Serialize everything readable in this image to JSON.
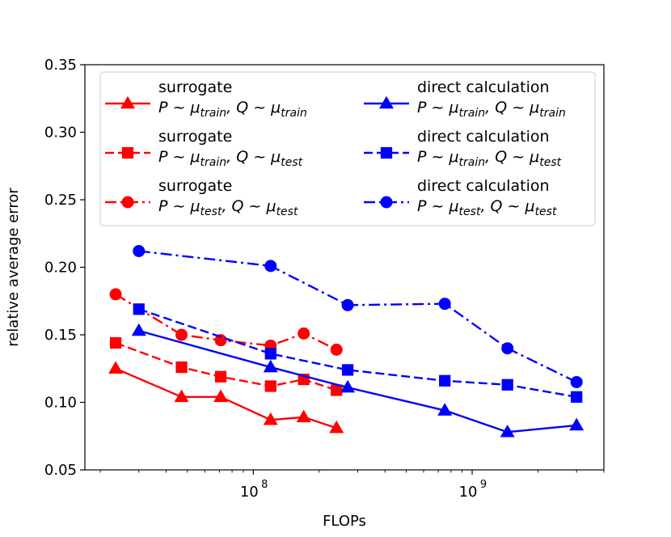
{
  "chart_data": {
    "type": "line",
    "title": "",
    "xlabel": "FLOPs",
    "ylabel": "relative average error",
    "xscale": "log",
    "xlim": [
      17000000,
      4000000000
    ],
    "ylim": [
      0.05,
      0.35
    ],
    "yticks": [
      0.05,
      0.1,
      0.15,
      0.2,
      0.25,
      0.3,
      0.35
    ],
    "ytick_labels": [
      "0.05",
      "0.10",
      "0.15",
      "0.20",
      "0.25",
      "0.30",
      "0.35"
    ],
    "xticks_major": [
      100000000,
      1000000000
    ],
    "xtick_labels": [
      {
        "base": "10",
        "exp": "8"
      },
      {
        "base": "10",
        "exp": "9"
      }
    ],
    "legend_position": "top",
    "series": [
      {
        "name": "surrogate",
        "subtitle": "P ~ μtrain, Q ~ μtrain",
        "legend_line1": "surrogate",
        "legend_line2": {
          "p_sub": "train",
          "q_sub": "train"
        },
        "color": "#ff0000",
        "marker": "triangle",
        "linestyle": "solid",
        "x": [
          23500000,
          47000000,
          71000000,
          120000000,
          170000000,
          240000000
        ],
        "y": [
          0.125,
          0.104,
          0.104,
          0.087,
          0.089,
          0.081
        ]
      },
      {
        "name": "surrogate",
        "subtitle": "P ~ μtrain, Q ~ μtest",
        "legend_line1": "surrogate",
        "legend_line2": {
          "p_sub": "train",
          "q_sub": "test"
        },
        "color": "#ff0000",
        "marker": "square",
        "linestyle": "dashed",
        "x": [
          23500000,
          47000000,
          71000000,
          120000000,
          170000000,
          240000000
        ],
        "y": [
          0.144,
          0.126,
          0.119,
          0.112,
          0.117,
          0.109
        ]
      },
      {
        "name": "surrogate",
        "subtitle": "P ~ μtest, Q ~ μtest",
        "legend_line1": "surrogate",
        "legend_line2": {
          "p_sub": "test",
          "q_sub": "test"
        },
        "color": "#ff0000",
        "marker": "circle",
        "linestyle": "dashdot",
        "x": [
          23500000,
          47000000,
          71000000,
          120000000,
          170000000,
          240000000
        ],
        "y": [
          0.18,
          0.15,
          0.146,
          0.142,
          0.151,
          0.139
        ]
      },
      {
        "name": "direct calculation",
        "subtitle": "P ~ μtrain, Q ~ μtrain",
        "legend_line1": "direct calculation",
        "legend_line2": {
          "p_sub": "train",
          "q_sub": "train"
        },
        "color": "#0000ff",
        "marker": "triangle",
        "linestyle": "solid",
        "x": [
          30000000,
          120000000,
          270000000,
          750000000,
          1450000000,
          3000000000
        ],
        "y": [
          0.153,
          0.126,
          0.111,
          0.094,
          0.078,
          0.083
        ]
      },
      {
        "name": "direct calculation",
        "subtitle": "P ~ μtrain, Q ~ μtest",
        "legend_line1": "direct calculation",
        "legend_line2": {
          "p_sub": "train",
          "q_sub": "test"
        },
        "color": "#0000ff",
        "marker": "square",
        "linestyle": "dashed",
        "x": [
          30000000,
          120000000,
          270000000,
          750000000,
          1450000000,
          3000000000
        ],
        "y": [
          0.169,
          0.136,
          0.124,
          0.116,
          0.113,
          0.104
        ]
      },
      {
        "name": "direct calculation",
        "subtitle": "P ~ μtest, Q ~ μtest",
        "legend_line1": "direct calculation",
        "legend_line2": {
          "p_sub": "test",
          "q_sub": "test"
        },
        "color": "#0000ff",
        "marker": "circle",
        "linestyle": "dashdot",
        "x": [
          30000000,
          120000000,
          270000000,
          750000000,
          1450000000,
          3000000000
        ],
        "y": [
          0.212,
          0.201,
          0.172,
          0.173,
          0.14,
          0.115
        ]
      }
    ]
  }
}
